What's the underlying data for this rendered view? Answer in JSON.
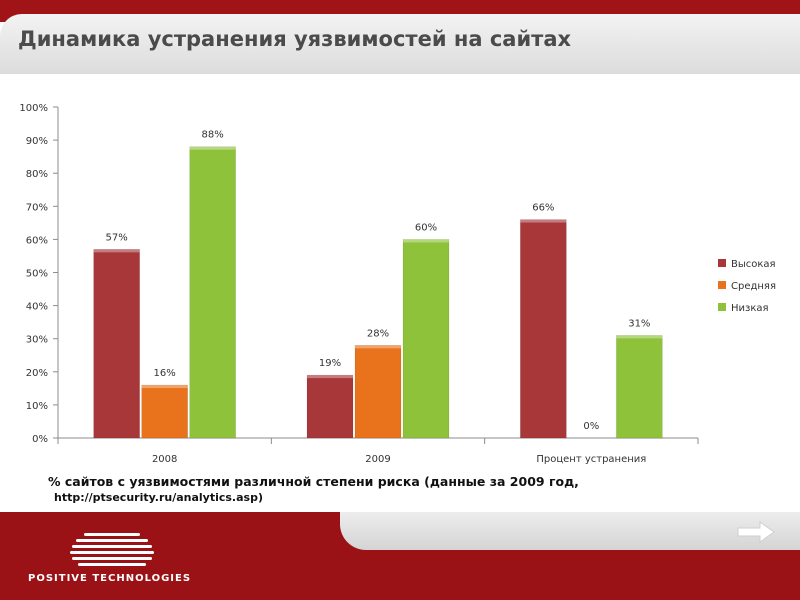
{
  "slide": {
    "title": "Динамика устранения уязвимостей на сайтах",
    "caption": "% сайтов с уязвимостями различной степени риска (данные за 2009 год,",
    "source": "http://ptsecurity.ru/analytics.asp)",
    "brand": "POSITIVE TECHNOLOGIES",
    "next_icon": "arrow-right-icon"
  },
  "chart_data": {
    "type": "bar",
    "categories": [
      "2008",
      "2009",
      "Процент устранения"
    ],
    "series": [
      {
        "name": "Высокая",
        "values": [
          57,
          19,
          66
        ],
        "labels": [
          "57%",
          "19%",
          "66%"
        ],
        "color": "#a8373a"
      },
      {
        "name": "Средняя",
        "values": [
          16,
          28,
          0
        ],
        "labels": [
          "16%",
          "28%",
          "0%"
        ],
        "color": "#e8731c"
      },
      {
        "name": "Низкая",
        "values": [
          88,
          60,
          31
        ],
        "labels": [
          "88%",
          "60%",
          "31%"
        ],
        "color": "#8ec23a"
      }
    ],
    "yticks": [
      "0%",
      "10%",
      "20%",
      "30%",
      "40%",
      "50%",
      "60%",
      "70%",
      "80%",
      "90%",
      "100%"
    ],
    "ylim": [
      0,
      100
    ],
    "legend": "right",
    "grid": false
  },
  "colors": {
    "accent": "#a01418",
    "high": "#a8373a",
    "medium": "#e8731c",
    "low": "#8ec23a"
  }
}
